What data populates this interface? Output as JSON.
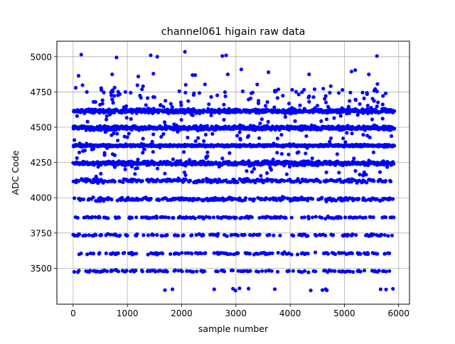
{
  "chart_data": {
    "type": "scatter",
    "title": "channel061 higain raw data",
    "xlabel": "sample number",
    "ylabel": "ADC Code",
    "xlim": [
      -300,
      6200
    ],
    "ylim": [
      3245,
      5110
    ],
    "xticks": [
      0,
      1000,
      2000,
      3000,
      4000,
      5000,
      6000
    ],
    "xtick_labels": [
      "0",
      "1000",
      "2000",
      "3000",
      "4000",
      "5000",
      "6000"
    ],
    "yticks": [
      3500,
      3750,
      4000,
      4250,
      4500,
      4750,
      5000
    ],
    "ytick_labels": [
      "3500",
      "3750",
      "4000",
      "4250",
      "4500",
      "4750",
      "5000"
    ],
    "grid": true,
    "marker_color": "#0000ff",
    "x_range": [
      0,
      5920
    ],
    "levels": [
      {
        "y": 4615,
        "density": "dense"
      },
      {
        "y": 4495,
        "density": "dense"
      },
      {
        "y": 4370,
        "density": "very dense"
      },
      {
        "y": 4245,
        "density": "dense"
      },
      {
        "y": 4120,
        "density": "medium"
      },
      {
        "y": 3990,
        "density": "medium"
      },
      {
        "y": 3860,
        "density": "sparse"
      },
      {
        "y": 3735,
        "density": "sparse"
      },
      {
        "y": 3605,
        "density": "sparse"
      },
      {
        "y": 3480,
        "density": "sparse"
      },
      {
        "y": 3350,
        "density": "very sparse"
      }
    ],
    "outliers": [
      {
        "x": 150,
        "y": 5015
      },
      {
        "x": 800,
        "y": 4995
      },
      {
        "x": 1430,
        "y": 5010
      },
      {
        "x": 1550,
        "y": 5000
      },
      {
        "x": 2060,
        "y": 5035
      },
      {
        "x": 2750,
        "y": 5005
      },
      {
        "x": 2820,
        "y": 5010
      },
      {
        "x": 5600,
        "y": 5005
      },
      {
        "x": 3100,
        "y": 4910
      },
      {
        "x": 5200,
        "y": 4905
      },
      {
        "x": 5130,
        "y": 4895
      },
      {
        "x": 1200,
        "y": 4860
      },
      {
        "x": 2200,
        "y": 4870
      },
      {
        "x": 2250,
        "y": 4870
      },
      {
        "x": 2850,
        "y": 4875
      },
      {
        "x": 3600,
        "y": 4890
      },
      {
        "x": 5450,
        "y": 4875
      },
      {
        "x": 4350,
        "y": 4875
      },
      {
        "x": 100,
        "y": 4865
      },
      {
        "x": 720,
        "y": 4875
      },
      {
        "x": 1480,
        "y": 4880
      }
    ]
  }
}
